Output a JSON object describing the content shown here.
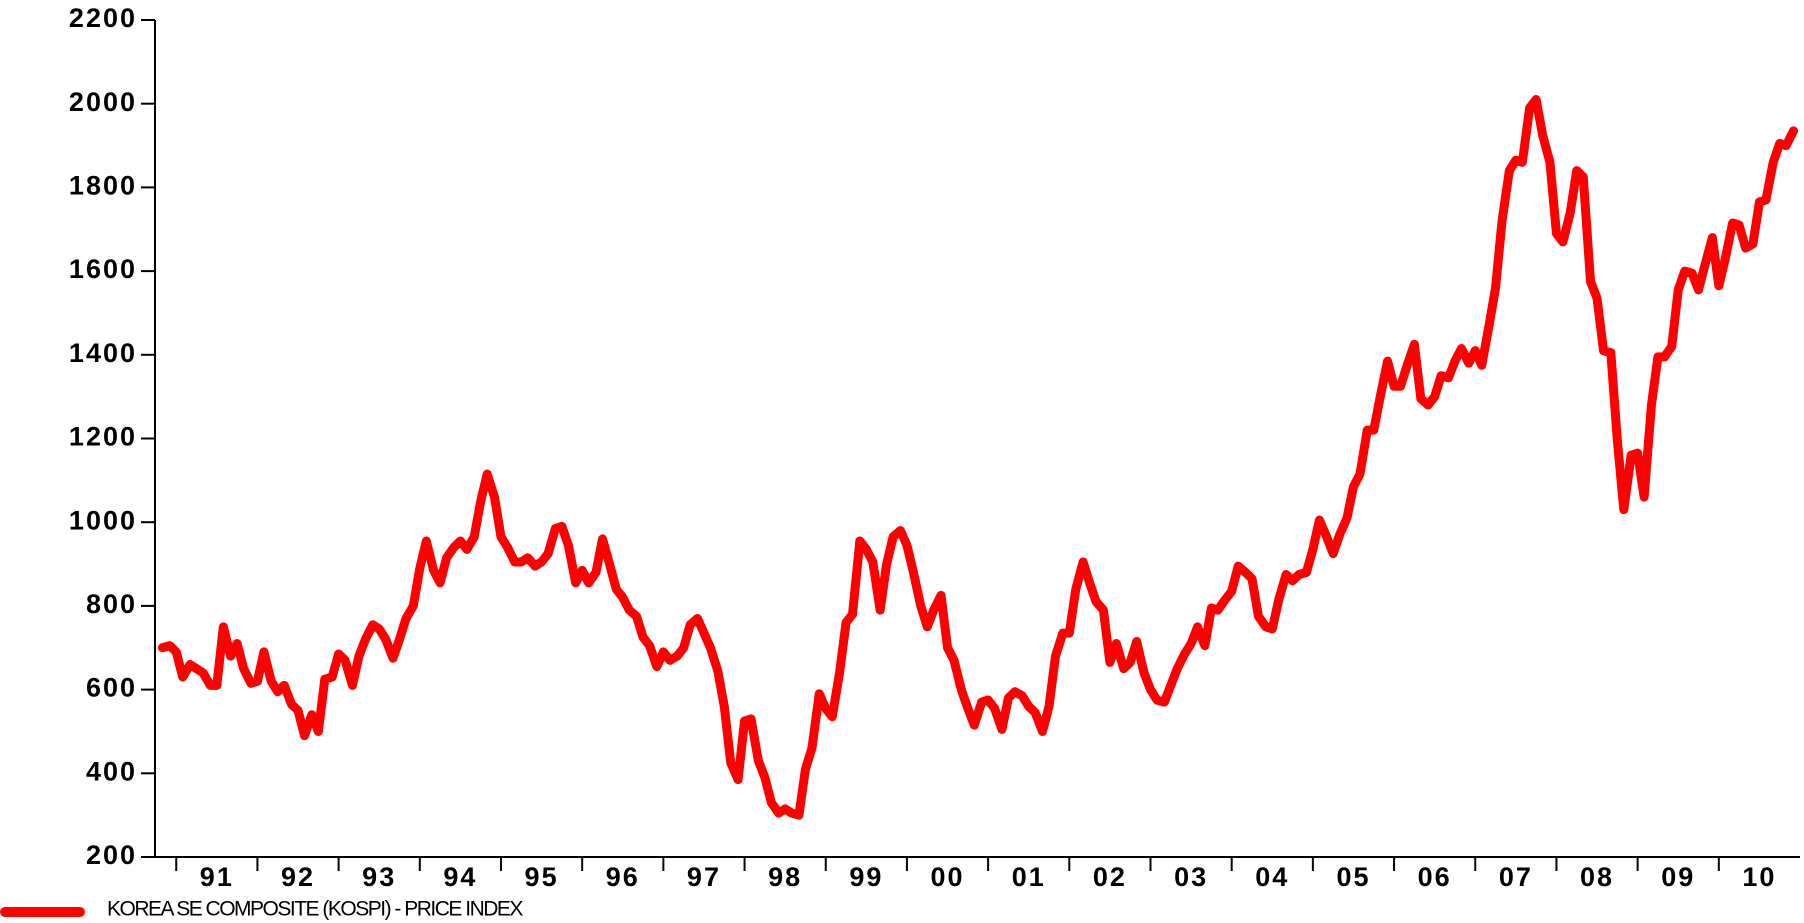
{
  "chart_data": {
    "type": "line",
    "x": [
      1990.83,
      1990.92,
      1991,
      1991.08,
      1991.17,
      1991.25,
      1991.33,
      1991.42,
      1991.5,
      1991.58,
      1991.67,
      1991.75,
      1991.83,
      1991.92,
      1992,
      1992.08,
      1992.17,
      1992.25,
      1992.33,
      1992.42,
      1992.5,
      1992.58,
      1992.67,
      1992.75,
      1992.83,
      1992.92,
      1993,
      1993.08,
      1993.17,
      1993.25,
      1993.33,
      1993.42,
      1993.5,
      1993.58,
      1993.67,
      1993.75,
      1993.83,
      1993.92,
      1994,
      1994.08,
      1994.17,
      1994.25,
      1994.33,
      1994.42,
      1994.5,
      1994.58,
      1994.67,
      1994.75,
      1994.83,
      1994.92,
      1995,
      1995.08,
      1995.17,
      1995.25,
      1995.33,
      1995.42,
      1995.5,
      1995.58,
      1995.67,
      1995.75,
      1995.83,
      1995.92,
      1996,
      1996.08,
      1996.17,
      1996.25,
      1996.33,
      1996.42,
      1996.5,
      1996.58,
      1996.67,
      1996.75,
      1996.83,
      1996.92,
      1997,
      1997.08,
      1997.17,
      1997.25,
      1997.33,
      1997.42,
      1997.5,
      1997.58,
      1997.67,
      1997.75,
      1997.83,
      1997.92,
      1998,
      1998.08,
      1998.17,
      1998.25,
      1998.33,
      1998.42,
      1998.5,
      1998.58,
      1998.67,
      1998.75,
      1998.83,
      1998.92,
      1999,
      1999.08,
      1999.17,
      1999.25,
      1999.33,
      1999.42,
      1999.5,
      1999.58,
      1999.67,
      1999.75,
      1999.83,
      1999.92,
      2000,
      2000.08,
      2000.17,
      2000.25,
      2000.33,
      2000.42,
      2000.5,
      2000.58,
      2000.67,
      2000.75,
      2000.83,
      2000.92,
      2001,
      2001.08,
      2001.17,
      2001.25,
      2001.33,
      2001.42,
      2001.5,
      2001.58,
      2001.67,
      2001.75,
      2001.83,
      2001.92,
      2002,
      2002.08,
      2002.17,
      2002.25,
      2002.33,
      2002.42,
      2002.5,
      2002.58,
      2002.67,
      2002.75,
      2002.83,
      2002.92,
      2003,
      2003.08,
      2003.17,
      2003.25,
      2003.33,
      2003.42,
      2003.5,
      2003.58,
      2003.67,
      2003.75,
      2003.83,
      2003.92,
      2004,
      2004.08,
      2004.17,
      2004.25,
      2004.33,
      2004.42,
      2004.5,
      2004.58,
      2004.67,
      2004.75,
      2004.83,
      2004.92,
      2005,
      2005.08,
      2005.17,
      2005.25,
      2005.33,
      2005.42,
      2005.5,
      2005.58,
      2005.67,
      2005.75,
      2005.83,
      2005.92,
      2006,
      2006.08,
      2006.17,
      2006.25,
      2006.33,
      2006.42,
      2006.5,
      2006.58,
      2006.67,
      2006.75,
      2006.83,
      2006.92,
      2007,
      2007.08,
      2007.17,
      2007.25,
      2007.33,
      2007.42,
      2007.5,
      2007.58,
      2007.67,
      2007.75,
      2007.83,
      2007.92,
      2008,
      2008.08,
      2008.17,
      2008.25,
      2008.33,
      2008.42,
      2008.5,
      2008.58,
      2008.67,
      2008.75,
      2008.83,
      2008.92,
      2009,
      2009.08,
      2009.17,
      2009.25,
      2009.33,
      2009.42,
      2009.5,
      2009.58,
      2009.67,
      2009.75,
      2009.83,
      2009.92,
      2010,
      2010.08,
      2010.17,
      2010.25,
      2010.33,
      2010.42,
      2010.5,
      2010.58,
      2010.67,
      2010.75,
      2010.83,
      2010.92
    ],
    "series": [
      {
        "name": "KOREA SE COMPOSITE (KOSPI) - PRICE INDEX",
        "color": "#ff0000",
        "values": [
          700,
          705,
          690,
          630,
          660,
          650,
          640,
          610,
          610,
          750,
          680,
          710,
          650,
          615,
          620,
          690,
          620,
          595,
          610,
          565,
          550,
          490,
          540,
          500,
          625,
          630,
          685,
          670,
          610,
          680,
          720,
          755,
          745,
          720,
          675,
          720,
          770,
          800,
          890,
          955,
          885,
          855,
          915,
          940,
          955,
          935,
          965,
          1050,
          1115,
          1060,
          965,
          940,
          905,
          905,
          915,
          895,
          905,
          925,
          985,
          990,
          945,
          855,
          885,
          855,
          880,
          960,
          905,
          840,
          820,
          790,
          775,
          725,
          705,
          655,
          690,
          670,
          680,
          700,
          755,
          770,
          735,
          700,
          645,
          560,
          425,
          385,
          525,
          530,
          430,
          390,
          330,
          305,
          315,
          305,
          300,
          410,
          460,
          590,
          555,
          535,
          640,
          760,
          780,
          955,
          935,
          905,
          790,
          900,
          965,
          980,
          945,
          880,
          800,
          750,
          790,
          825,
          700,
          670,
          600,
          555,
          515,
          570,
          575,
          555,
          505,
          580,
          595,
          585,
          560,
          545,
          500,
          560,
          680,
          735,
          735,
          840,
          905,
          855,
          810,
          790,
          665,
          710,
          650,
          665,
          715,
          640,
          600,
          575,
          570,
          610,
          650,
          685,
          710,
          750,
          705,
          795,
          790,
          815,
          835,
          895,
          880,
          865,
          775,
          750,
          745,
          815,
          875,
          860,
          875,
          880,
          935,
          1005,
          965,
          925,
          970,
          1010,
          1085,
          1115,
          1220,
          1220,
          1300,
          1385,
          1325,
          1325,
          1380,
          1425,
          1295,
          1280,
          1300,
          1350,
          1345,
          1385,
          1415,
          1380,
          1410,
          1375,
          1470,
          1560,
          1720,
          1840,
          1865,
          1860,
          1990,
          2010,
          1925,
          1860,
          1690,
          1670,
          1740,
          1840,
          1825,
          1575,
          1535,
          1410,
          1405,
          1195,
          1030,
          1160,
          1165,
          1060,
          1280,
          1395,
          1395,
          1420,
          1555,
          1600,
          1595,
          1555,
          1615,
          1680,
          1565,
          1630,
          1715,
          1710,
          1655,
          1665,
          1765,
          1770,
          1860,
          1905,
          1900,
          1935
        ]
      }
    ],
    "xlim": [
      1990.8,
      2011
    ],
    "xticks": [
      {
        "value": 1991,
        "label": "91"
      },
      {
        "value": 1992,
        "label": "92"
      },
      {
        "value": 1993,
        "label": "93"
      },
      {
        "value": 1994,
        "label": "94"
      },
      {
        "value": 1995,
        "label": "95"
      },
      {
        "value": 1996,
        "label": "96"
      },
      {
        "value": 1997,
        "label": "97"
      },
      {
        "value": 1998,
        "label": "98"
      },
      {
        "value": 1999,
        "label": "99"
      },
      {
        "value": 2000,
        "label": "00"
      },
      {
        "value": 2001,
        "label": "01"
      },
      {
        "value": 2002,
        "label": "02"
      },
      {
        "value": 2003,
        "label": "03"
      },
      {
        "value": 2004,
        "label": "04"
      },
      {
        "value": 2005,
        "label": "05"
      },
      {
        "value": 2006,
        "label": "06"
      },
      {
        "value": 2007,
        "label": "07"
      },
      {
        "value": 2008,
        "label": "08"
      },
      {
        "value": 2009,
        "label": "09"
      },
      {
        "value": 2010,
        "label": "10"
      }
    ],
    "ylim": [
      200,
      2200
    ],
    "yticks": [
      200,
      400,
      600,
      800,
      1000,
      1200,
      1400,
      1600,
      1800,
      2000,
      2200
    ],
    "legend": "bottom-left"
  }
}
